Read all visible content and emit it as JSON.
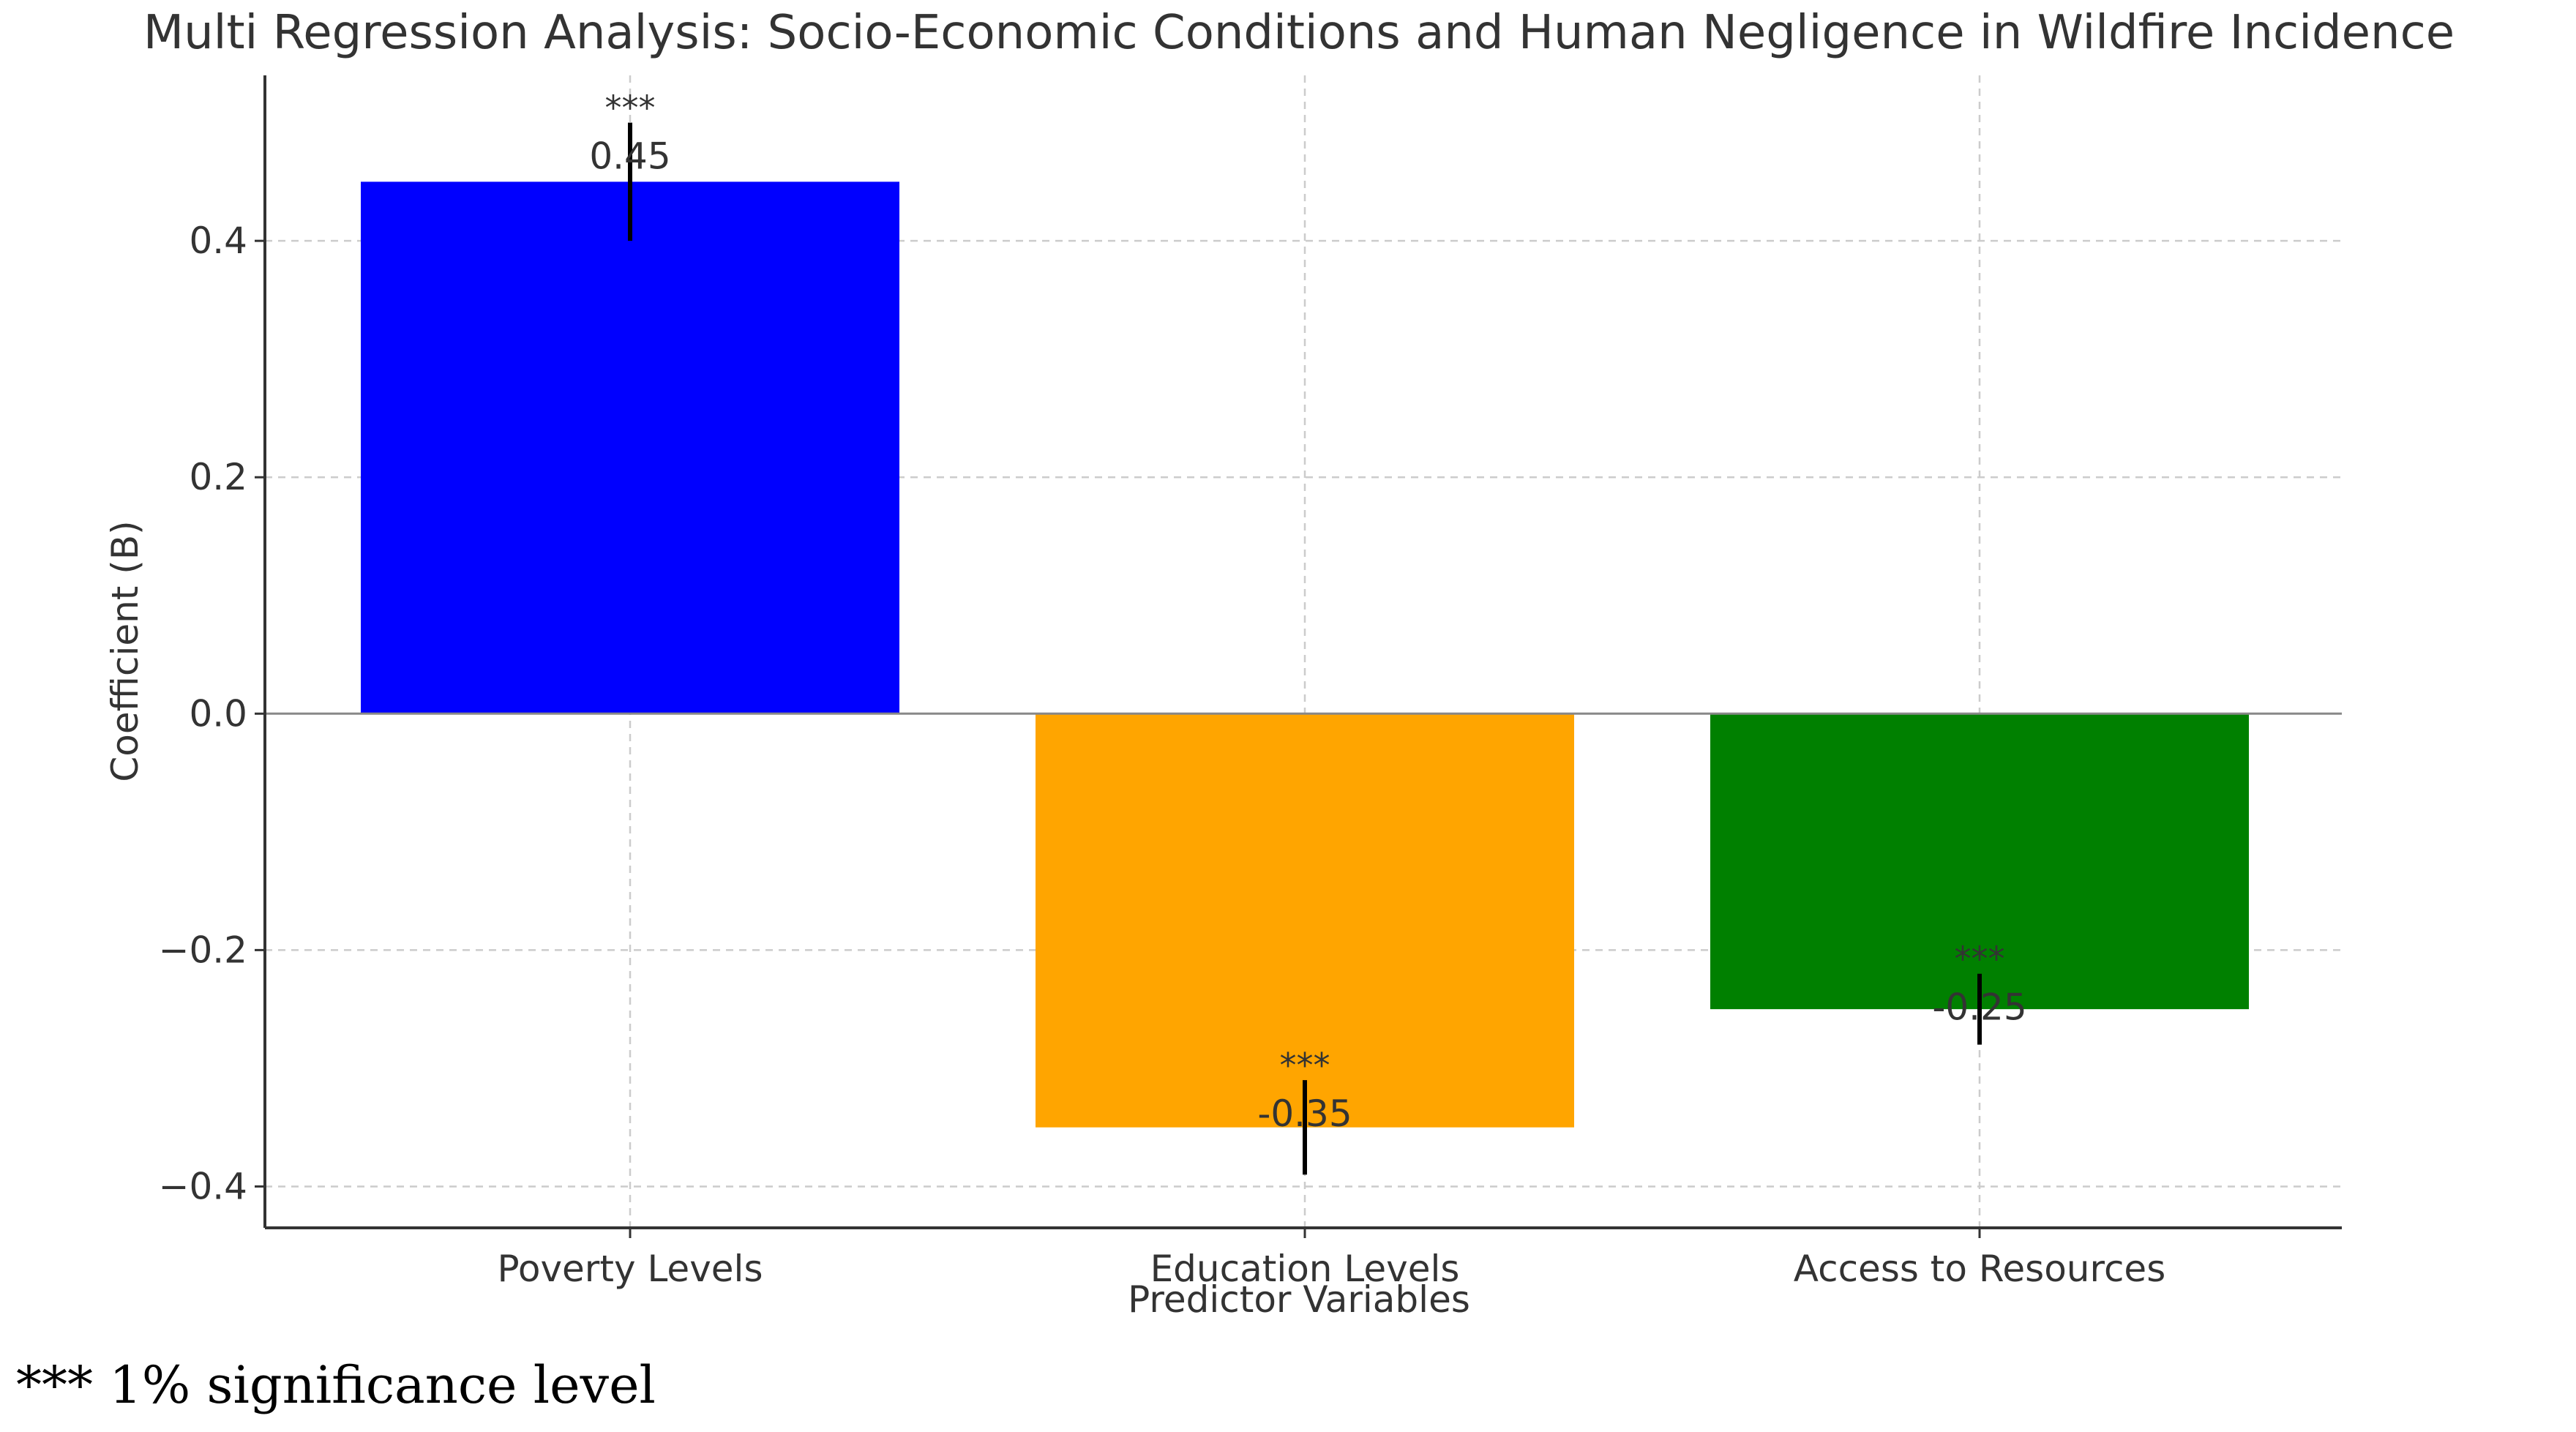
{
  "chart_data": {
    "type": "bar",
    "title": "Multi Regression Analysis: Socio-Economic Conditions and Human Negligence in Wildfire Incidence",
    "xlabel": "Predictor Variables",
    "ylabel": "Coefficient (B)",
    "categories": [
      "Poverty Levels",
      "Education Levels",
      "Access to Resources"
    ],
    "values": [
      0.45,
      -0.35,
      -0.25
    ],
    "errors": [
      0.05,
      0.04,
      0.03
    ],
    "value_labels": [
      "0.45",
      "-0.35",
      "-0.25"
    ],
    "significance": [
      "***",
      "***",
      "***"
    ],
    "colors": [
      "#0000ff",
      "#ffa500",
      "#008000"
    ],
    "ylim": [
      -0.435,
      0.54
    ],
    "yticks": [
      -0.4,
      -0.2,
      0.0,
      0.2,
      0.4
    ],
    "ytick_labels": [
      "−0.4",
      "−0.2",
      "0.0",
      "0.2",
      "0.4"
    ],
    "grid": true,
    "grid_style": "dashed",
    "footnote": "*** 1% significance level"
  }
}
